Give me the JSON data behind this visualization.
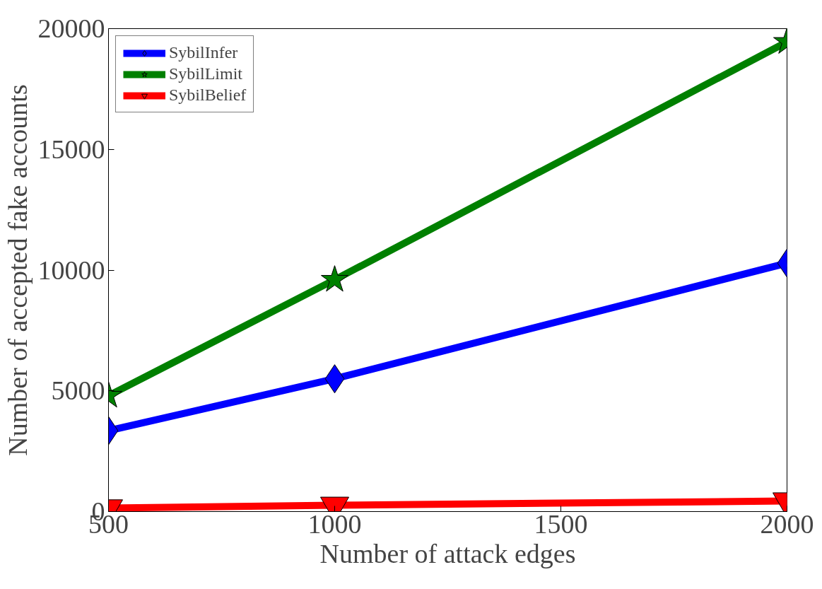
{
  "chart_data": {
    "type": "line",
    "xlabel": "Number of attack edges",
    "ylabel": "Number of accepted fake accounts",
    "x": [
      500,
      1000,
      2000
    ],
    "series": [
      {
        "name": "SybilInfer",
        "color": "#0000ff",
        "marker": "diamond",
        "values": [
          3350,
          5500,
          10290
        ]
      },
      {
        "name": "SybilLimit",
        "color": "#008000",
        "marker": "star",
        "values": [
          4800,
          9600,
          19450
        ]
      },
      {
        "name": "SybilBelief",
        "color": "#ff0000",
        "marker": "triangle",
        "values": [
          150,
          260,
          440
        ]
      }
    ],
    "xlim": [
      500,
      2000
    ],
    "xticks": [
      500,
      1000,
      1500,
      2000
    ],
    "ylim": [
      0,
      20000
    ],
    "yticks": [
      0,
      5000,
      10000,
      15000,
      20000
    ],
    "grid": false,
    "legend": "top left",
    "line_style": "solid"
  }
}
